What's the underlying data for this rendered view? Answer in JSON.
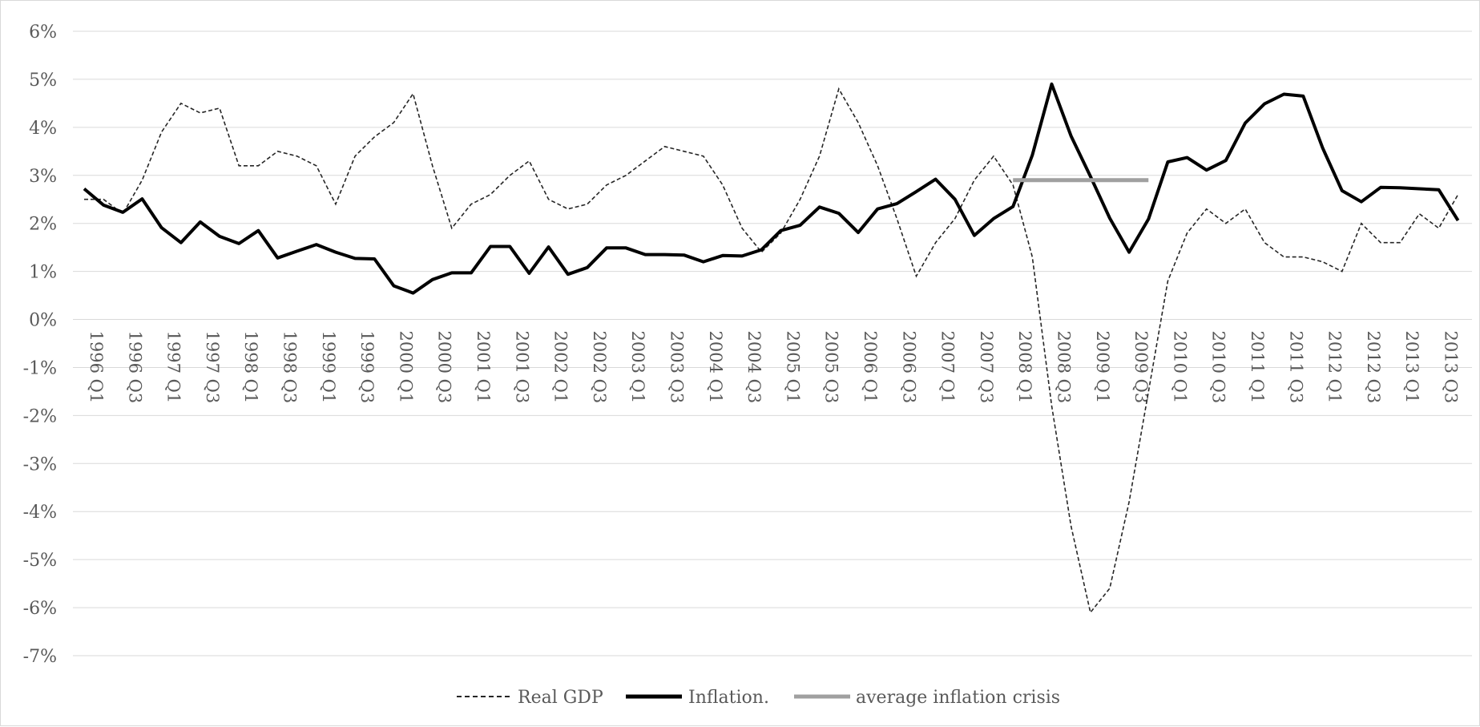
{
  "chart_data": {
    "type": "line",
    "title": "",
    "xlabel": "",
    "ylabel": "",
    "ylim": [
      -7,
      6
    ],
    "y_ticks": [
      6,
      5,
      4,
      3,
      2,
      1,
      0,
      -1,
      -2,
      -3,
      -4,
      -5,
      -6,
      -7
    ],
    "y_tick_labels": [
      "6%",
      "5%",
      "4%",
      "3%",
      "2%",
      "1%",
      "0%",
      "-1%",
      "-2%",
      "-3%",
      "-4%",
      "-5%",
      "-6%",
      "-7%"
    ],
    "grid": true,
    "legend_position": "bottom",
    "x_labels": [
      "1996 Q1",
      "1996 Q3",
      "1997 Q1",
      "1997 Q3",
      "1998 Q1",
      "1998 Q3",
      "1999 Q1",
      "1999 Q3",
      "2000 Q1",
      "2000 Q3",
      "2001 Q1",
      "2001 Q3",
      "2002 Q1",
      "2002 Q3",
      "2003 Q1",
      "2003 Q3",
      "2004 Q1",
      "2004 Q3",
      "2005 Q1",
      "2005 Q3",
      "2006 Q1",
      "2006 Q3",
      "2007 Q1",
      "2007 Q3",
      "2008 Q1",
      "2008 Q3",
      "2009 Q1",
      "2009 Q3",
      "2010 Q1",
      "2010 Q3",
      "2011 Q1",
      "2011 Q3",
      "2012 Q1",
      "2012 Q3",
      "2013 Q1",
      "2013 Q3"
    ],
    "n_periods": 72,
    "series": [
      {
        "name": "Real GDP",
        "style": "dashed",
        "color": "#262626",
        "values": [
          2.5,
          2.5,
          2.2,
          2.9,
          3.9,
          4.5,
          4.3,
          4.4,
          3.2,
          3.2,
          3.5,
          3.4,
          3.2,
          2.4,
          3.4,
          3.8,
          4.1,
          4.7,
          3.2,
          1.9,
          2.4,
          2.6,
          3.0,
          3.3,
          2.5,
          2.3,
          2.4,
          2.8,
          3.0,
          3.3,
          3.6,
          3.5,
          3.4,
          2.8,
          1.9,
          1.4,
          1.8,
          2.5,
          3.4,
          4.8,
          4.1,
          3.2,
          2.1,
          0.9,
          1.6,
          2.1,
          2.9,
          3.4,
          2.8,
          1.3,
          -1.8,
          -4.3,
          -6.1,
          -5.6,
          -3.8,
          -1.5,
          0.8,
          1.8,
          2.3,
          2.0,
          2.3,
          1.6,
          1.3,
          1.3,
          1.2,
          1.0,
          2.0,
          1.6,
          1.6,
          2.2,
          1.9,
          2.6
        ]
      },
      {
        "name": "Inflation.",
        "style": "solid-thick",
        "color": "#000000",
        "values": [
          2.72,
          2.38,
          2.23,
          2.51,
          1.91,
          1.6,
          2.03,
          1.73,
          1.58,
          1.85,
          1.28,
          1.42,
          1.56,
          1.4,
          1.27,
          1.26,
          0.7,
          0.55,
          0.83,
          0.97,
          0.97,
          1.52,
          1.52,
          0.96,
          1.51,
          0.94,
          1.08,
          1.49,
          1.49,
          1.35,
          1.35,
          1.34,
          1.2,
          1.33,
          1.32,
          1.45,
          1.85,
          1.96,
          2.34,
          2.21,
          1.81,
          2.3,
          2.41,
          2.66,
          2.92,
          2.5,
          1.75,
          2.1,
          2.35,
          3.42,
          4.9,
          3.82,
          2.98,
          2.11,
          1.4,
          2.09,
          3.28,
          3.37,
          3.11,
          3.31,
          4.09,
          4.49,
          4.69,
          4.65,
          3.57,
          2.68,
          2.45,
          2.75,
          2.74,
          2.72,
          2.7,
          2.06
        ]
      },
      {
        "name": "average inflation crisis",
        "style": "solid-gray",
        "color": "#a0a0a0",
        "start_index": 48,
        "end_index": 55,
        "value": 2.9
      }
    ]
  }
}
